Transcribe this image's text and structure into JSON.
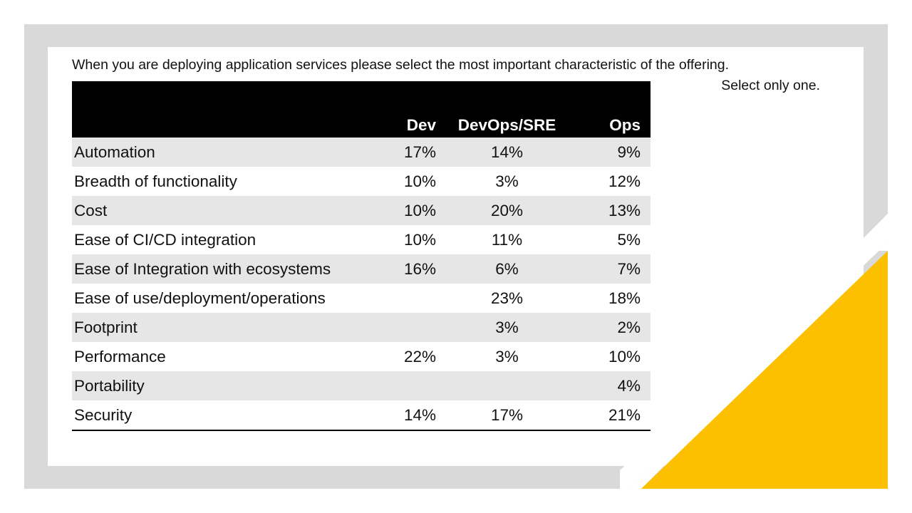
{
  "question": {
    "line1": "When you are deploying application services please select the most important characteristic of the offering.",
    "line2": "Select only one."
  },
  "colors": {
    "frame": "#d9d9d9",
    "accent": "#fdc000",
    "header": "#000000",
    "stripe": "#e6e6e6"
  },
  "table": {
    "columns": [
      "",
      "Dev",
      "DevOps/SRE",
      "Ops"
    ],
    "rows": [
      {
        "label": "Automation",
        "dev": "17%",
        "devops": "14%",
        "ops": "9%"
      },
      {
        "label": "Breadth of functionality",
        "dev": "10%",
        "devops": "3%",
        "ops": "12%"
      },
      {
        "label": "Cost",
        "dev": "10%",
        "devops": "20%",
        "ops": "13%"
      },
      {
        "label": "Ease of CI/CD integration",
        "dev": "10%",
        "devops": "11%",
        "ops": "5%"
      },
      {
        "label": "Ease of Integration with ecosystems",
        "dev": "16%",
        "devops": "6%",
        "ops": "7%"
      },
      {
        "label": "Ease of use/deployment/operations",
        "dev": "",
        "devops": "23%",
        "ops": "18%"
      },
      {
        "label": "Footprint",
        "dev": "",
        "devops": "3%",
        "ops": "2%"
      },
      {
        "label": "Performance",
        "dev": "22%",
        "devops": "3%",
        "ops": "10%"
      },
      {
        "label": "Portability",
        "dev": "",
        "devops": "",
        "ops": "4%"
      },
      {
        "label": "Security",
        "dev": "14%",
        "devops": "17%",
        "ops": "21%"
      }
    ]
  }
}
